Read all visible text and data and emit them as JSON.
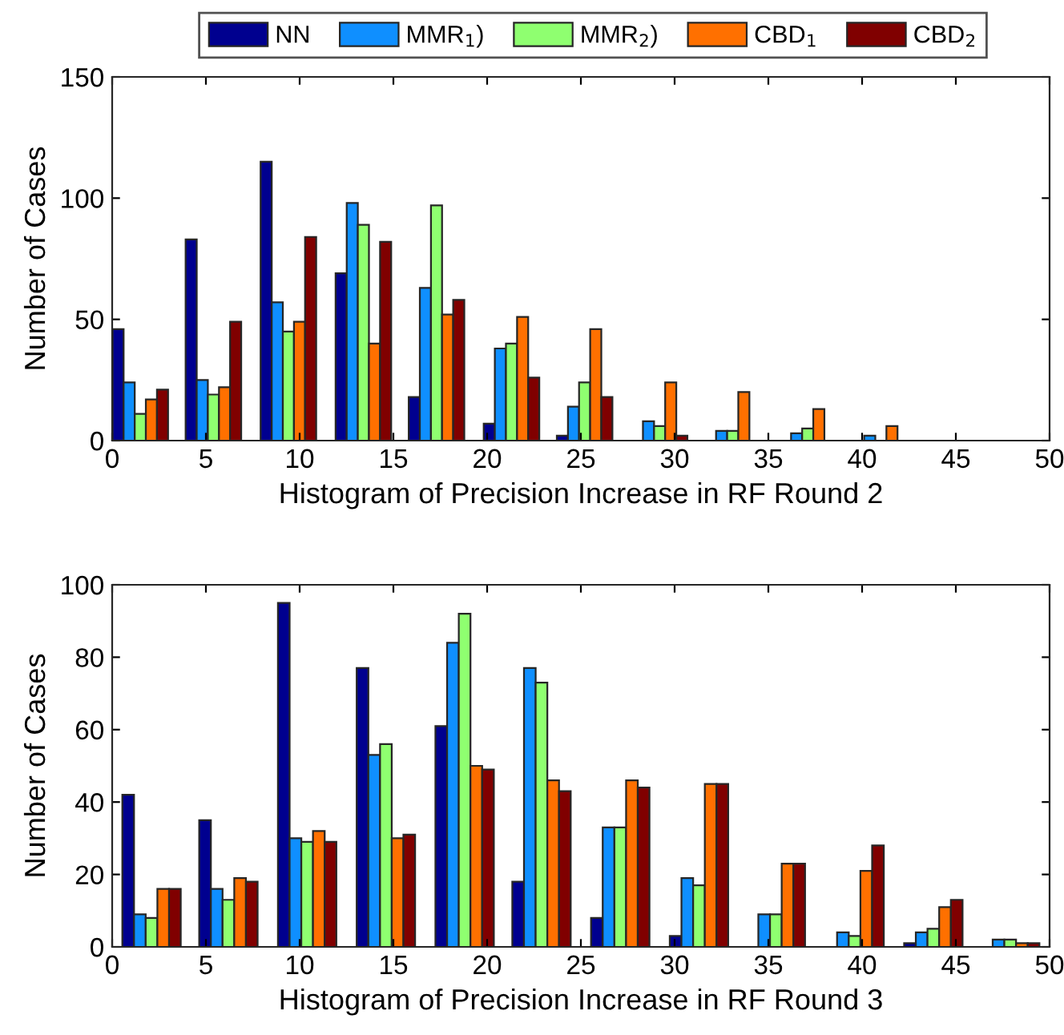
{
  "chart_data": [
    {
      "type": "bar",
      "xlabel": "Histogram of Precision Increase in RF Round 2",
      "ylabel": "Number of Cases",
      "x": [
        1.5,
        5.4,
        9.4,
        13.4,
        17.3,
        21.3,
        25.2,
        29.2,
        33.1,
        37.1,
        41.0
      ],
      "xlim": [
        0,
        50
      ],
      "xticks": [
        0,
        5,
        10,
        15,
        20,
        25,
        30,
        35,
        40,
        45,
        50
      ],
      "ylim": [
        0,
        150
      ],
      "yticks": [
        0,
        50,
        100,
        150
      ],
      "grid": false,
      "legend": "top",
      "series": [
        {
          "name": "NN",
          "color": "#00008f",
          "values": [
            46,
            83,
            115,
            69,
            18,
            7,
            2,
            0,
            0,
            0,
            0
          ]
        },
        {
          "name": "MMR$_{1}$)",
          "color": "#0f8fff",
          "values": [
            24,
            25,
            57,
            98,
            63,
            38,
            14,
            8,
            4,
            3,
            2
          ]
        },
        {
          "name": "MMR$_{2}$)",
          "color": "#8fff70",
          "values": [
            11,
            19,
            45,
            89,
            97,
            40,
            24,
            6,
            4,
            5,
            0
          ]
        },
        {
          "name": "CBD$_{1}$",
          "color": "#ff7000",
          "values": [
            17,
            22,
            49,
            40,
            52,
            51,
            46,
            24,
            20,
            13,
            6
          ]
        },
        {
          "name": "CBD$_{2}$",
          "color": "#800000",
          "values": [
            21,
            49,
            84,
            82,
            58,
            26,
            18,
            2,
            0,
            0,
            0
          ]
        }
      ]
    },
    {
      "type": "bar",
      "xlabel": "Histogram of Precision Increase in RF Round 3",
      "ylabel": "Number of Cases",
      "x": [
        2.1,
        6.2,
        10.4,
        14.6,
        18.8,
        22.9,
        27.1,
        31.3,
        35.4,
        39.6,
        43.8,
        47.9
      ],
      "xlim": [
        0,
        50
      ],
      "xticks": [
        0,
        5,
        10,
        15,
        20,
        25,
        30,
        35,
        40,
        45,
        50
      ],
      "ylim": [
        0,
        100
      ],
      "yticks": [
        0,
        20,
        40,
        60,
        80,
        100
      ],
      "grid": false,
      "series": [
        {
          "color": "#00008f",
          "values": [
            42,
            35,
            95,
            77,
            61,
            18,
            8,
            3,
            0,
            0,
            1,
            0
          ]
        },
        {
          "color": "#0f8fff",
          "values": [
            9,
            16,
            30,
            53,
            84,
            77,
            33,
            19,
            9,
            4,
            4,
            2
          ]
        },
        {
          "color": "#8fff70",
          "values": [
            8,
            13,
            29,
            56,
            92,
            73,
            33,
            17,
            9,
            3,
            5,
            2
          ]
        },
        {
          "color": "#ff7000",
          "values": [
            16,
            19,
            32,
            30,
            50,
            46,
            46,
            45,
            23,
            21,
            11,
            1
          ]
        },
        {
          "color": "#800000",
          "values": [
            16,
            18,
            29,
            31,
            49,
            43,
            44,
            45,
            23,
            28,
            13,
            1
          ]
        }
      ]
    }
  ]
}
